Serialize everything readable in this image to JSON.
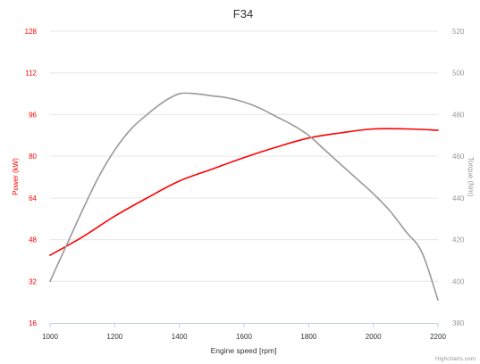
{
  "credits": "Highcharts.com",
  "chart_data": {
    "type": "line",
    "title": "F34",
    "xlabel": "Engine speed [rpm]",
    "ylabel_left": "Power (kW)",
    "ylabel_right": "Torque (Nm)",
    "xlim": [
      1000,
      2200
    ],
    "ylim_left": [
      16,
      128
    ],
    "ylim_right": [
      380,
      520
    ],
    "x_ticks": [
      1000,
      1200,
      1400,
      1600,
      1800,
      2000,
      2200
    ],
    "y_ticks_left": [
      16,
      32,
      48,
      64,
      80,
      96,
      112,
      128
    ],
    "y_ticks_right": [
      380,
      400,
      420,
      440,
      460,
      480,
      500,
      520
    ],
    "grid": true,
    "legend": false,
    "series": [
      {
        "axis": "left",
        "color": "#ff0000",
        "x": [
          1000,
          1100,
          1200,
          1300,
          1400,
          1500,
          1600,
          1700,
          1800,
          1900,
          2000,
          2100,
          2200
        ],
        "values": [
          42,
          49,
          57,
          64,
          70.5,
          75,
          79.5,
          83.5,
          87,
          89,
          90.5,
          90.5,
          90
        ]
      },
      {
        "axis": "right",
        "color": "#999999",
        "x": [
          1000,
          1050,
          1100,
          1150,
          1200,
          1250,
          1300,
          1350,
          1400,
          1450,
          1500,
          1550,
          1600,
          1650,
          1700,
          1750,
          1800,
          1850,
          1900,
          1950,
          2000,
          2050,
          2100,
          2150,
          2200
        ],
        "values": [
          400,
          417,
          434,
          450,
          463,
          473,
          480,
          486,
          490,
          490,
          489,
          488,
          486,
          483,
          479,
          475,
          470,
          463,
          456,
          449,
          442,
          434,
          424,
          414,
          391
        ]
      }
    ]
  }
}
